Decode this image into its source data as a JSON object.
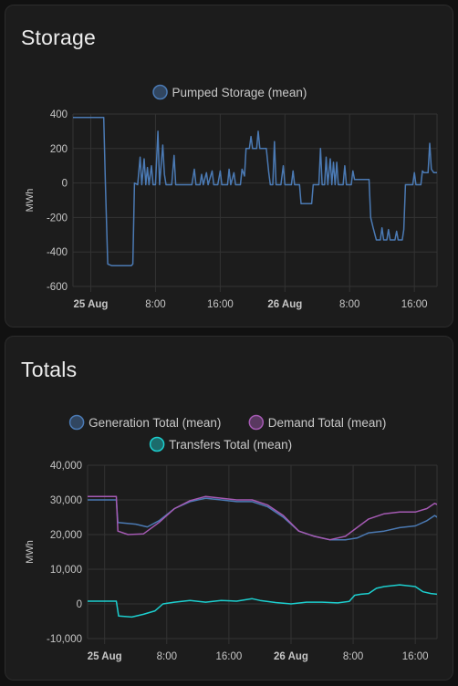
{
  "colors": {
    "background": "#111111",
    "card": "#1c1c1c",
    "grid": "#333333",
    "pumped_storage": "#4b7ab4",
    "generation": "#4b7ab4",
    "demand": "#a55ab3",
    "transfers": "#1ccfcf"
  },
  "cards": [
    {
      "title": "Storage",
      "chart_data": {
        "type": "line",
        "title": "",
        "ylabel": "MWh",
        "xlabel": "",
        "ylim": [
          -600,
          400
        ],
        "yticks": [
          400,
          200,
          0,
          -200,
          -400,
          -600
        ],
        "ytick_labels": [
          "400",
          "200",
          "0",
          "-200",
          "-400",
          "-600"
        ],
        "xlim": [
          -2.2,
          42.8
        ],
        "xticks": [
          0,
          8,
          16,
          24,
          32,
          40
        ],
        "xtick_labels": [
          "25 Aug",
          "8:00",
          "16:00",
          "26 Aug",
          "8:00",
          "16:00"
        ],
        "bold_xticks": [
          0,
          24
        ],
        "grid": true,
        "legend_placement": "top-center",
        "series": [
          {
            "name": "Pumped Storage (mean)",
            "color": "#4b7ab4",
            "points": [
              [
                -2.2,
                380
              ],
              [
                1.6,
                380
              ],
              [
                1.8,
                0
              ],
              [
                2.1,
                -470
              ],
              [
                2.6,
                -480
              ],
              [
                5.0,
                -480
              ],
              [
                5.2,
                -470
              ],
              [
                5.4,
                0
              ],
              [
                5.8,
                -10
              ],
              [
                6.1,
                150
              ],
              [
                6.3,
                -10
              ],
              [
                6.6,
                140
              ],
              [
                6.8,
                -10
              ],
              [
                7.0,
                90
              ],
              [
                7.2,
                -10
              ],
              [
                7.5,
                100
              ],
              [
                7.7,
                -10
              ],
              [
                8.0,
                -10
              ],
              [
                8.3,
                300
              ],
              [
                8.5,
                -10
              ],
              [
                8.9,
                220
              ],
              [
                9.1,
                50
              ],
              [
                9.3,
                -10
              ],
              [
                10.0,
                -10
              ],
              [
                10.3,
                160
              ],
              [
                10.5,
                -10
              ],
              [
                12.5,
                -10
              ],
              [
                12.8,
                80
              ],
              [
                13.0,
                -10
              ],
              [
                13.5,
                -10
              ],
              [
                13.7,
                50
              ],
              [
                13.9,
                -10
              ],
              [
                14.3,
                60
              ],
              [
                14.5,
                -10
              ],
              [
                15.0,
                70
              ],
              [
                15.2,
                -10
              ],
              [
                15.7,
                -10
              ],
              [
                16.0,
                70
              ],
              [
                16.2,
                -10
              ],
              [
                16.9,
                -10
              ],
              [
                17.1,
                80
              ],
              [
                17.3,
                -10
              ],
              [
                17.7,
                60
              ],
              [
                17.9,
                -10
              ],
              [
                18.5,
                -10
              ],
              [
                18.7,
                80
              ],
              [
                19.0,
                40
              ],
              [
                19.2,
                200
              ],
              [
                19.6,
                200
              ],
              [
                19.8,
                270
              ],
              [
                20.0,
                200
              ],
              [
                20.5,
                200
              ],
              [
                20.7,
                300
              ],
              [
                20.9,
                200
              ],
              [
                21.7,
                200
              ],
              [
                22.0,
                60
              ],
              [
                22.2,
                -10
              ],
              [
                22.5,
                -10
              ],
              [
                22.7,
                240
              ],
              [
                22.9,
                -10
              ],
              [
                23.5,
                -10
              ],
              [
                23.8,
                100
              ],
              [
                24.0,
                -10
              ],
              [
                24.8,
                -10
              ],
              [
                25.0,
                70
              ],
              [
                25.2,
                -10
              ],
              [
                25.8,
                -10
              ],
              [
                26.0,
                -120
              ],
              [
                27.3,
                -120
              ],
              [
                27.5,
                -10
              ],
              [
                28.2,
                -10
              ],
              [
                28.4,
                200
              ],
              [
                28.6,
                -10
              ],
              [
                28.9,
                -10
              ],
              [
                29.1,
                150
              ],
              [
                29.3,
                -10
              ],
              [
                29.6,
                140
              ],
              [
                29.8,
                -10
              ],
              [
                30.0,
                120
              ],
              [
                30.2,
                -10
              ],
              [
                30.4,
                120
              ],
              [
                30.6,
                -10
              ],
              [
                31.2,
                -10
              ],
              [
                31.4,
                100
              ],
              [
                31.6,
                -10
              ],
              [
                32.2,
                -10
              ],
              [
                32.4,
                70
              ],
              [
                32.6,
                20
              ],
              [
                34.4,
                20
              ],
              [
                34.6,
                -200
              ],
              [
                34.9,
                -260
              ],
              [
                35.3,
                -330
              ],
              [
                35.8,
                -330
              ],
              [
                36.0,
                -260
              ],
              [
                36.2,
                -330
              ],
              [
                36.6,
                -330
              ],
              [
                36.8,
                -270
              ],
              [
                37.0,
                -330
              ],
              [
                37.6,
                -330
              ],
              [
                37.8,
                -280
              ],
              [
                38.0,
                -330
              ],
              [
                38.5,
                -330
              ],
              [
                38.7,
                -270
              ],
              [
                38.9,
                -10
              ],
              [
                39.8,
                -10
              ],
              [
                40.0,
                60
              ],
              [
                40.2,
                -10
              ],
              [
                40.8,
                -10
              ],
              [
                41.0,
                70
              ],
              [
                41.2,
                60
              ],
              [
                41.7,
                60
              ],
              [
                41.9,
                230
              ],
              [
                42.1,
                80
              ],
              [
                42.4,
                60
              ],
              [
                42.7,
                60
              ],
              [
                42.8,
                60
              ],
              [
                43.0,
                60
              ],
              [
                43.2,
                140
              ],
              [
                43.4,
                60
              ],
              [
                43.9,
                60
              ],
              [
                44.1,
                100
              ],
              [
                44.3,
                -10
              ],
              [
                46.5,
                -10
              ],
              [
                46.8,
                160
              ]
            ]
          }
        ]
      }
    },
    {
      "title": "Totals",
      "chart_data": {
        "type": "line",
        "title": "",
        "ylabel": "MWh",
        "xlabel": "",
        "ylim": [
          -10000,
          40000
        ],
        "yticks": [
          40000,
          30000,
          20000,
          10000,
          0,
          -10000
        ],
        "ytick_labels": [
          "40,000",
          "30,000",
          "20,000",
          "10,000",
          "0",
          "-10,000"
        ],
        "xlim": [
          -2.2,
          42.8
        ],
        "xticks": [
          0,
          8,
          16,
          24,
          32,
          40
        ],
        "xtick_labels": [
          "25 Aug",
          "8:00",
          "16:00",
          "26 Aug",
          "8:00",
          "16:00"
        ],
        "bold_xticks": [
          0,
          24
        ],
        "grid": true,
        "legend_placement": "top-center",
        "series": [
          {
            "name": "Generation Total (mean)",
            "color": "#4b7ab4",
            "points": [
              [
                -2.2,
                30000
              ],
              [
                1.5,
                30000
              ],
              [
                1.7,
                23500
              ],
              [
                4.0,
                23000
              ],
              [
                5.5,
                22200
              ],
              [
                7.0,
                24000
              ],
              [
                9.0,
                27500
              ],
              [
                11.0,
                29500
              ],
              [
                13.0,
                30500
              ],
              [
                15.0,
                30000
              ],
              [
                17.0,
                29500
              ],
              [
                19.0,
                29500
              ],
              [
                21.0,
                28000
              ],
              [
                23.0,
                25000
              ],
              [
                25.0,
                21000
              ],
              [
                27.0,
                19500
              ],
              [
                29.0,
                18500
              ],
              [
                31.0,
                18500
              ],
              [
                32.5,
                19000
              ],
              [
                34.0,
                20500
              ],
              [
                36.0,
                21000
              ],
              [
                38.0,
                22000
              ],
              [
                40.0,
                22500
              ],
              [
                41.5,
                24000
              ],
              [
                42.5,
                25500
              ],
              [
                43.5,
                24000
              ],
              [
                45.0,
                22000
              ],
              [
                46.8,
                19500
              ]
            ]
          },
          {
            "name": "Demand Total (mean)",
            "color": "#a55ab3",
            "points": [
              [
                -2.2,
                31000
              ],
              [
                1.5,
                31000
              ],
              [
                1.7,
                21000
              ],
              [
                3.0,
                20000
              ],
              [
                5.0,
                20200
              ],
              [
                7.0,
                23500
              ],
              [
                9.0,
                27500
              ],
              [
                11.0,
                29800
              ],
              [
                13.0,
                31000
              ],
              [
                15.0,
                30500
              ],
              [
                17.0,
                30000
              ],
              [
                19.0,
                30000
              ],
              [
                21.0,
                28500
              ],
              [
                23.0,
                25500
              ],
              [
                25.0,
                21000
              ],
              [
                27.0,
                19500
              ],
              [
                29.0,
                18500
              ],
              [
                31.0,
                19500
              ],
              [
                32.5,
                22000
              ],
              [
                34.0,
                24500
              ],
              [
                36.0,
                26000
              ],
              [
                38.0,
                26500
              ],
              [
                40.0,
                26500
              ],
              [
                41.5,
                27500
              ],
              [
                42.5,
                29000
              ],
              [
                43.5,
                28000
              ],
              [
                45.0,
                26000
              ],
              [
                46.8,
                22000
              ]
            ]
          },
          {
            "name": "Transfers Total (mean)",
            "color": "#1ccfcf",
            "points": [
              [
                -2.2,
                800
              ],
              [
                1.5,
                800
              ],
              [
                1.8,
                -3500
              ],
              [
                3.5,
                -3800
              ],
              [
                5.0,
                -3000
              ],
              [
                6.5,
                -2000
              ],
              [
                7.5,
                0
              ],
              [
                9.0,
                500
              ],
              [
                11.0,
                1000
              ],
              [
                13.0,
                500
              ],
              [
                15.0,
                1000
              ],
              [
                17.0,
                800
              ],
              [
                19.0,
                1500
              ],
              [
                20.0,
                1000
              ],
              [
                22.0,
                400
              ],
              [
                24.0,
                0
              ],
              [
                26.0,
                500
              ],
              [
                28.0,
                500
              ],
              [
                30.0,
                300
              ],
              [
                31.5,
                700
              ],
              [
                32.2,
                2500
              ],
              [
                33.0,
                2800
              ],
              [
                34.0,
                3000
              ],
              [
                35.0,
                4500
              ],
              [
                36.0,
                5000
              ],
              [
                38.0,
                5500
              ],
              [
                40.0,
                5000
              ],
              [
                41.0,
                3500
              ],
              [
                42.0,
                3000
              ],
              [
                44.0,
                2500
              ],
              [
                46.0,
                2000
              ],
              [
                46.8,
                1800
              ]
            ]
          }
        ]
      }
    }
  ]
}
